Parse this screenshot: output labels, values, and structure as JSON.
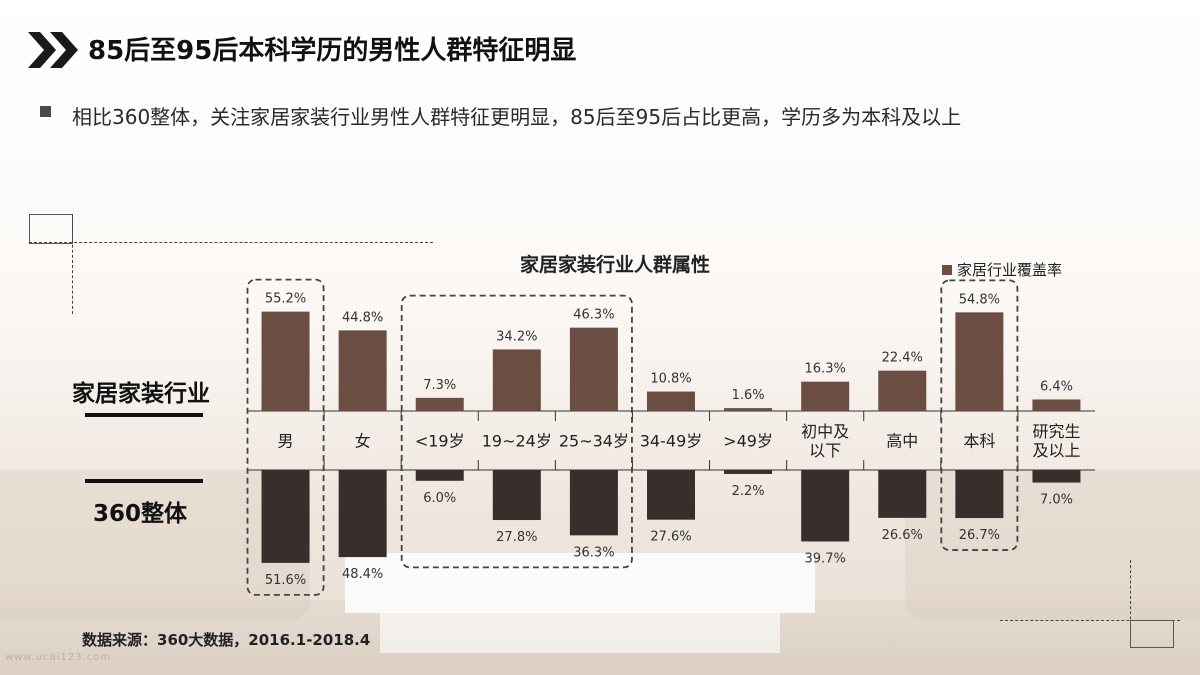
{
  "slide": {
    "title": "85后至95后本科学历的男性人群特征明显",
    "bullet": "相比360整体，关注家居家装行业男性人群特征更明显，85后至95后占比更高，学历多为本科及以上",
    "row_label_top": "家居家装行业",
    "row_label_bottom": "360整体",
    "source": "数据来源：360大数据，2016.1-2018.4",
    "watermark": "www.ucai123.com"
  },
  "colors": {
    "industry_bar": "#6b4d42",
    "overall_bar": "#3a2e2c",
    "highlight_border": "#444444"
  },
  "chart_data": {
    "type": "bar",
    "title": "家居家装行业人群属性",
    "legend": "top-right",
    "categories": [
      "男",
      "女",
      "<19岁",
      "19~24岁",
      "25~34岁",
      "34-49岁",
      ">49岁",
      "初中及\n以下",
      "高中",
      "本科",
      "研究生\n及以上"
    ],
    "series": [
      {
        "name": "家居行业覆盖率",
        "direction": "up",
        "values": [
          55.2,
          44.8,
          7.3,
          34.2,
          46.3,
          10.8,
          1.6,
          16.3,
          22.4,
          54.8,
          6.4
        ],
        "labels": [
          "55.2%",
          "44.8%",
          "7.3%",
          "34.2%",
          "46.3%",
          "10.8%",
          "1.6%",
          "16.3%",
          "22.4%",
          "54.8%",
          "6.4%"
        ]
      },
      {
        "name": "",
        "direction": "down",
        "values": [
          51.6,
          48.4,
          6.0,
          27.8,
          36.3,
          27.6,
          2.2,
          39.7,
          26.6,
          26.7,
          7.0
        ],
        "labels": [
          "51.6%",
          "48.4%",
          "6.0%",
          "27.8%",
          "36.3%",
          "27.6%",
          "2.2%",
          "39.7%",
          "26.6%",
          "26.7%",
          "7.0%"
        ]
      }
    ],
    "highlight_groups": [
      [
        0
      ],
      [
        2,
        3,
        4
      ],
      [
        9
      ]
    ],
    "unit": "%"
  }
}
